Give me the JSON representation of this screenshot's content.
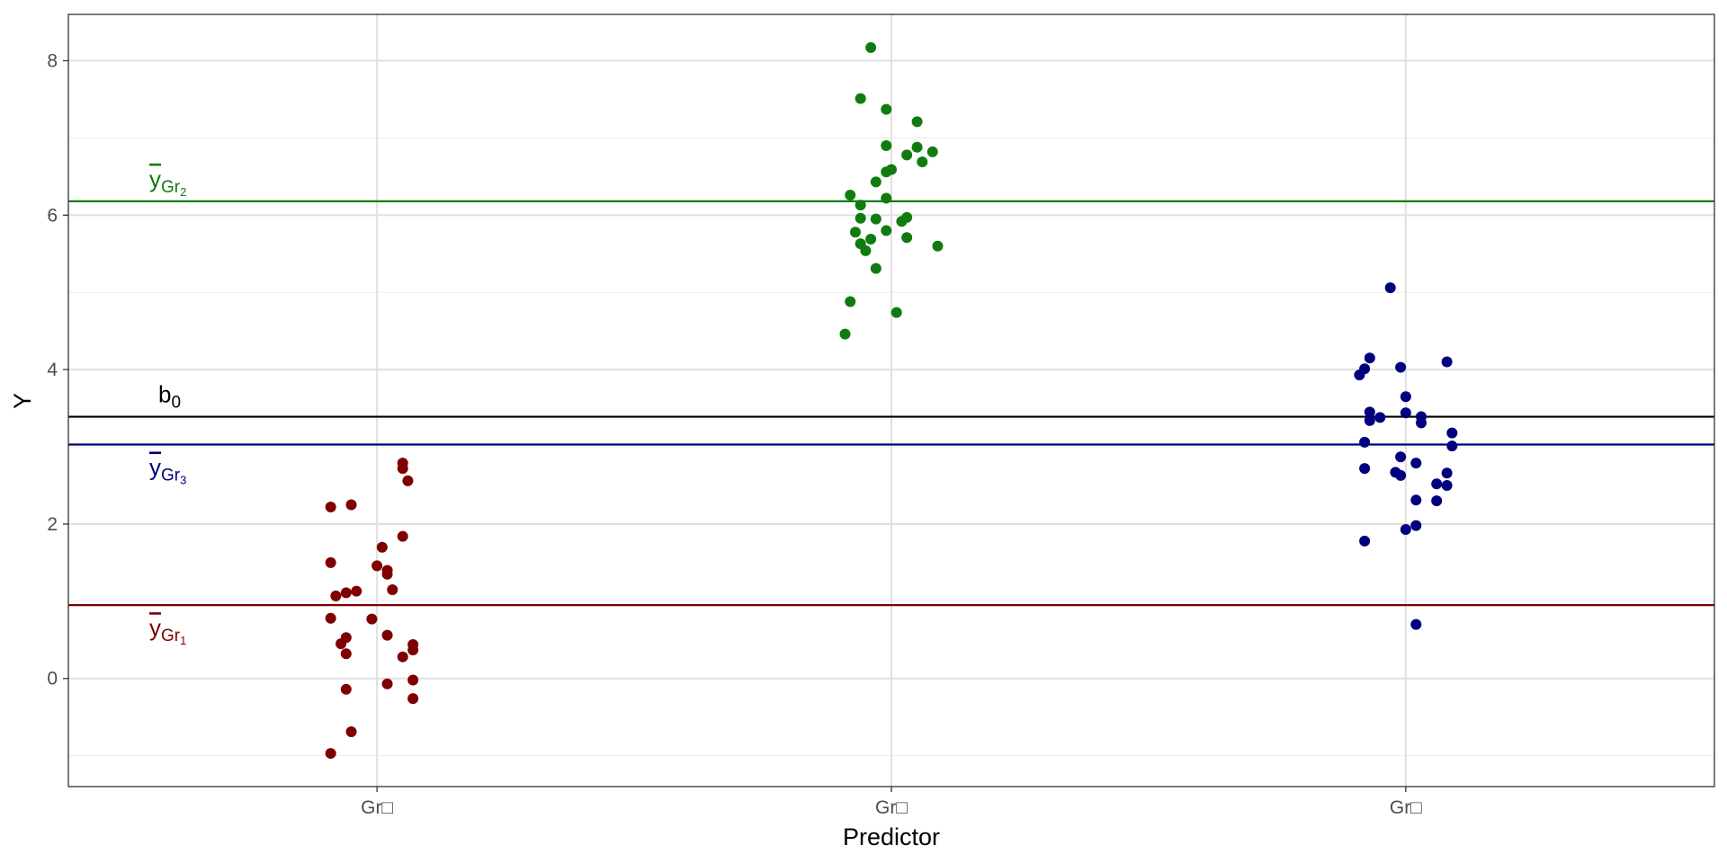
{
  "chart_data": {
    "type": "scatter",
    "xlabel": "Predictor",
    "ylabel": "Y",
    "categories": [
      "Gr□",
      "Gr□",
      "Gr□"
    ],
    "ylim": [
      -1.4,
      8.6
    ],
    "yticks": [
      0,
      2,
      4,
      6,
      8
    ],
    "grid": true,
    "series": [
      {
        "color": "#7f0000",
        "points": [
          [
            -0.09,
            2.22
          ],
          [
            -0.05,
            2.25
          ],
          [
            0.05,
            2.79
          ],
          [
            0.05,
            2.72
          ],
          [
            0.06,
            2.56
          ],
          [
            0.05,
            1.84
          ],
          [
            0.01,
            1.7
          ],
          [
            -0.09,
            1.5
          ],
          [
            0.0,
            1.46
          ],
          [
            0.02,
            1.4
          ],
          [
            0.02,
            1.35
          ],
          [
            0.03,
            1.15
          ],
          [
            -0.04,
            1.13
          ],
          [
            -0.06,
            1.11
          ],
          [
            -0.08,
            1.07
          ],
          [
            -0.01,
            0.77
          ],
          [
            -0.09,
            0.78
          ],
          [
            0.02,
            0.56
          ],
          [
            -0.06,
            0.53
          ],
          [
            -0.07,
            0.45
          ],
          [
            0.07,
            0.44
          ],
          [
            0.07,
            0.37
          ],
          [
            -0.06,
            0.32
          ],
          [
            0.05,
            0.28
          ],
          [
            0.07,
            -0.02
          ],
          [
            0.02,
            -0.07
          ],
          [
            -0.06,
            -0.14
          ],
          [
            0.07,
            -0.26
          ],
          [
            -0.05,
            -0.69
          ],
          [
            -0.09,
            -0.97
          ]
        ]
      },
      {
        "color": "#107c10",
        "points": [
          [
            -0.04,
            8.17
          ],
          [
            -0.06,
            7.51
          ],
          [
            -0.01,
            7.37
          ],
          [
            0.05,
            7.21
          ],
          [
            -0.01,
            6.9
          ],
          [
            0.05,
            6.88
          ],
          [
            0.08,
            6.82
          ],
          [
            0.03,
            6.78
          ],
          [
            0.06,
            6.69
          ],
          [
            0.0,
            6.59
          ],
          [
            -0.01,
            6.56
          ],
          [
            -0.03,
            6.43
          ],
          [
            -0.08,
            6.26
          ],
          [
            -0.01,
            6.22
          ],
          [
            -0.06,
            6.13
          ],
          [
            -0.06,
            5.96
          ],
          [
            0.03,
            5.97
          ],
          [
            -0.03,
            5.95
          ],
          [
            0.02,
            5.92
          ],
          [
            -0.07,
            5.78
          ],
          [
            -0.01,
            5.8
          ],
          [
            0.03,
            5.71
          ],
          [
            -0.04,
            5.69
          ],
          [
            -0.06,
            5.63
          ],
          [
            0.09,
            5.6
          ],
          [
            -0.05,
            5.54
          ],
          [
            -0.03,
            5.31
          ],
          [
            -0.08,
            4.88
          ],
          [
            0.01,
            4.74
          ],
          [
            -0.09,
            4.46
          ]
        ]
      },
      {
        "color": "#00007f",
        "points": [
          [
            -0.03,
            5.06
          ],
          [
            -0.07,
            4.15
          ],
          [
            0.08,
            4.1
          ],
          [
            -0.01,
            4.03
          ],
          [
            -0.08,
            4.01
          ],
          [
            -0.09,
            3.93
          ],
          [
            0.0,
            3.65
          ],
          [
            -0.07,
            3.45
          ],
          [
            0.0,
            3.44
          ],
          [
            -0.05,
            3.38
          ],
          [
            0.03,
            3.39
          ],
          [
            -0.07,
            3.34
          ],
          [
            0.03,
            3.31
          ],
          [
            0.09,
            3.18
          ],
          [
            -0.08,
            3.06
          ],
          [
            0.09,
            3.01
          ],
          [
            -0.01,
            2.87
          ],
          [
            0.02,
            2.79
          ],
          [
            -0.08,
            2.72
          ],
          [
            -0.02,
            2.67
          ],
          [
            0.08,
            2.66
          ],
          [
            -0.01,
            2.63
          ],
          [
            0.06,
            2.52
          ],
          [
            0.08,
            2.5
          ],
          [
            0.02,
            2.31
          ],
          [
            0.06,
            2.3
          ],
          [
            0.02,
            1.98
          ],
          [
            0.0,
            1.93
          ],
          [
            -0.08,
            1.78
          ],
          [
            0.02,
            0.7
          ]
        ]
      }
    ],
    "reference_lines": [
      {
        "value": 6.18,
        "color": "#107c10",
        "label_base": "y",
        "label_sub": "Gr",
        "label_subsub": "2",
        "overline": true
      },
      {
        "value": 3.39,
        "color": "#000000",
        "label_base": "b",
        "label_sub": "0",
        "label_subsub": "",
        "overline": false
      },
      {
        "value": 3.03,
        "color": "#00007f",
        "label_base": "y",
        "label_sub": "Gr",
        "label_subsub": "3",
        "overline": true
      },
      {
        "value": 0.95,
        "color": "#7f0000",
        "label_base": "y",
        "label_sub": "Gr",
        "label_subsub": "1",
        "overline": true
      }
    ]
  }
}
